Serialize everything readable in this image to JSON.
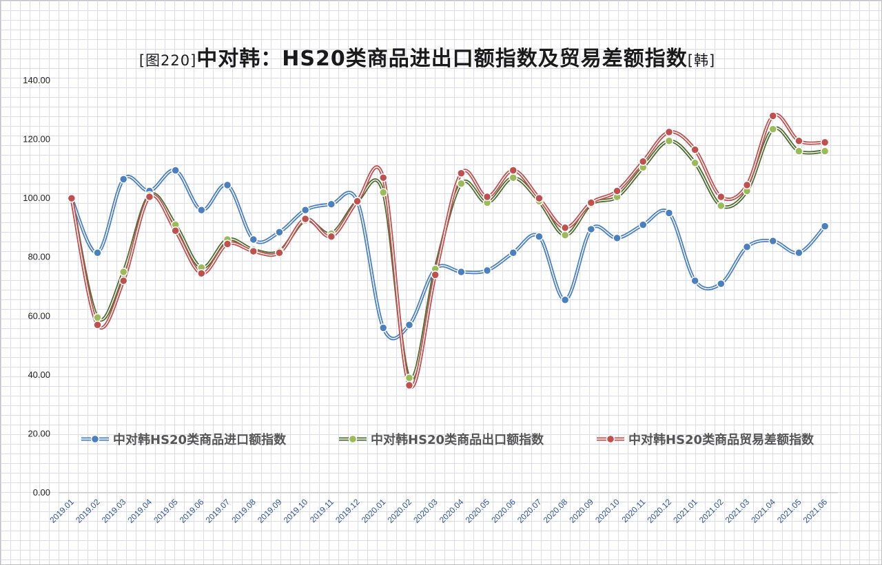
{
  "title": {
    "prefix": "[图220]",
    "main": "中对韩：HS20类商品进出口额指数及贸易差额指数",
    "suffix": "[韩]"
  },
  "chart_data": {
    "type": "line",
    "title": "[图220]中对韩：HS20类商品进出口额指数及贸易差额指数[韩]",
    "categories": [
      "2019.01",
      "2019.02",
      "2019.03",
      "2019.04",
      "2019.05",
      "2019.06",
      "2019.07",
      "2019.08",
      "2019.09",
      "2019.10",
      "2019.11",
      "2019.12",
      "2020.01",
      "2020.02",
      "2020.03",
      "2020.04",
      "2020.05",
      "2020.06",
      "2020.07",
      "2020.08",
      "2020.09",
      "2020.10",
      "2020.11",
      "2020.12",
      "2021.01",
      "2021.02",
      "2021.03",
      "2021.04",
      "2021.05",
      "2021.06"
    ],
    "y_ticks": [
      "0.00",
      "20.00",
      "40.00",
      "60.00",
      "80.00",
      "100.00",
      "120.00",
      "140.00"
    ],
    "ylim": [
      0,
      140
    ],
    "grid": true,
    "smooth": true,
    "legend_position": "inside-bottom",
    "series": [
      {
        "name": "中对韩HS20类商品进口额指数",
        "color": "#4a7fc0",
        "values": [
          100,
          81.5,
          106.5,
          102.5,
          109.5,
          96.0,
          104.5,
          86.0,
          88.5,
          96.0,
          98.0,
          99.0,
          56.0,
          57.0,
          76.0,
          75.0,
          75.5,
          81.5,
          87.0,
          65.5,
          89.5,
          86.5,
          91.0,
          95.0,
          72.0,
          71.0,
          83.5,
          85.5,
          81.5,
          90.5
        ]
      },
      {
        "name": "中对韩HS20类商品出口额指数",
        "color": "#4e6b2e",
        "marker": "#9bbb59",
        "values": [
          100,
          59.5,
          75.0,
          101.0,
          91.0,
          76.5,
          86.0,
          82.5,
          82.0,
          92.5,
          88.0,
          99.0,
          102.0,
          39.0,
          76.0,
          105.0,
          98.5,
          107.0,
          99.0,
          87.5,
          98.0,
          100.5,
          110.5,
          119.5,
          112.0,
          97.5,
          102.5,
          123.5,
          116.0,
          116.0
        ]
      },
      {
        "name": "中对韩HS20类商品贸易差额指数",
        "color": "#c0504d",
        "values": [
          100,
          57.0,
          72.0,
          100.5,
          89.0,
          74.5,
          84.5,
          82.0,
          81.5,
          93.0,
          87.0,
          99.0,
          107.0,
          36.5,
          74.0,
          108.5,
          100.5,
          109.5,
          100.0,
          90.0,
          98.5,
          102.5,
          112.5,
          122.5,
          116.5,
          100.5,
          104.5,
          128.0,
          119.5,
          119.0
        ]
      }
    ]
  }
}
